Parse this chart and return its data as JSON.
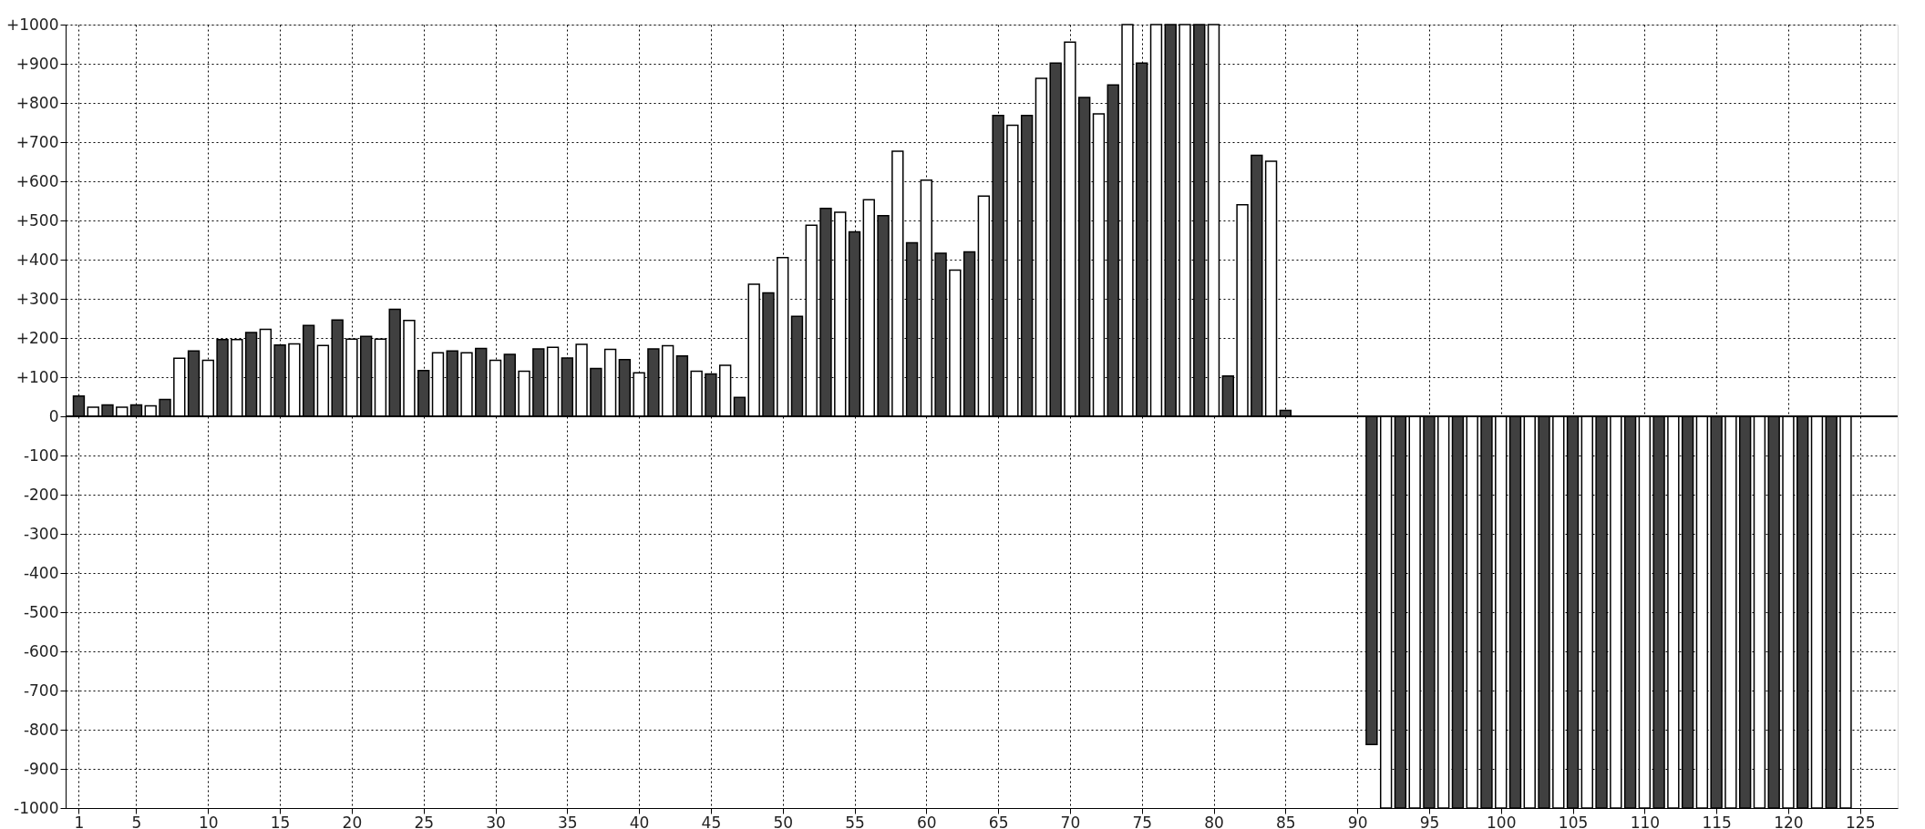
{
  "chart_data": {
    "type": "bar",
    "xlim": [
      0.4,
      127.3
    ],
    "xticks": [
      1,
      5,
      10,
      15,
      20,
      25,
      30,
      35,
      40,
      45,
      50,
      55,
      60,
      65,
      70,
      75,
      80,
      85,
      90,
      95,
      100,
      105,
      110,
      115,
      120,
      125
    ],
    "ylim": [
      -1000,
      1000
    ],
    "yticks": [
      {
        "value": -1000,
        "label": "-1000"
      },
      {
        "value": -900,
        "label": "-900"
      },
      {
        "value": -800,
        "label": "-800"
      },
      {
        "value": -700,
        "label": "-700"
      },
      {
        "value": -600,
        "label": "-600"
      },
      {
        "value": -500,
        "label": "-500"
      },
      {
        "value": -400,
        "label": "-400"
      },
      {
        "value": -300,
        "label": "-300"
      },
      {
        "value": -200,
        "label": "-200"
      },
      {
        "value": -100,
        "label": "-100"
      },
      0,
      {
        "value": 100,
        "label": "+100"
      },
      {
        "value": 200,
        "label": "+200"
      },
      {
        "value": 300,
        "label": "+300"
      },
      {
        "value": 400,
        "label": "+400"
      },
      {
        "value": 500,
        "label": "+500"
      },
      {
        "value": 600,
        "label": "+600"
      },
      {
        "value": 700,
        "label": "+700"
      },
      {
        "value": 800,
        "label": "+800"
      },
      {
        "value": 900,
        "label": "+900"
      },
      {
        "value": 1000,
        "label": "+1000"
      }
    ],
    "grid": true,
    "line_style": "dotted",
    "ref_lines": [
      {
        "axis": "y",
        "value": 0,
        "color": "#000000"
      }
    ],
    "series": [
      {
        "color": "#404040",
        "x": [
          1,
          3,
          5,
          7,
          9,
          11,
          13,
          15,
          17,
          19,
          21,
          23,
          25,
          27,
          29,
          31,
          33,
          35,
          37,
          39,
          41,
          43,
          45,
          47,
          49,
          51,
          53,
          55,
          57,
          59,
          61,
          63,
          65,
          67,
          69,
          71,
          73,
          75,
          77,
          79,
          81,
          83,
          85,
          91,
          93,
          95,
          97,
          99,
          101,
          103,
          105,
          107,
          109,
          111,
          113,
          115,
          117,
          119,
          121,
          123
        ],
        "values": [
          52,
          29,
          29,
          43,
          167,
          196,
          214,
          182,
          232,
          246,
          204,
          273,
          117,
          167,
          173,
          158,
          172,
          149,
          122,
          145,
          172,
          154,
          108,
          48,
          315,
          255,
          531,
          471,
          512,
          443,
          416,
          420,
          768,
          768,
          902,
          814,
          846,
          902,
          1000,
          1000,
          103,
          666,
          15,
          -838,
          -1000,
          -1000,
          -1000,
          -1000,
          -1000,
          -1000,
          -1000,
          -1000,
          -1000,
          -1000,
          -1000,
          -1000,
          -1000,
          -1000,
          -1000,
          -1000
        ]
      },
      {
        "color": "#ffffff",
        "x": [
          2,
          4,
          6,
          8,
          10,
          12,
          14,
          16,
          18,
          20,
          22,
          24,
          26,
          28,
          30,
          32,
          34,
          36,
          38,
          40,
          42,
          44,
          46,
          48,
          50,
          52,
          54,
          56,
          58,
          60,
          62,
          64,
          66,
          68,
          70,
          72,
          74,
          76,
          78,
          80,
          82,
          84,
          92,
          94,
          96,
          98,
          100,
          102,
          104,
          106,
          108,
          110,
          112,
          114,
          116,
          118,
          120,
          122,
          124
        ],
        "values": [
          23,
          23,
          27,
          148,
          143,
          196,
          222,
          185,
          181,
          197,
          197,
          245,
          162,
          162,
          143,
          115,
          176,
          184,
          171,
          111,
          180,
          115,
          130,
          337,
          405,
          488,
          521,
          553,
          677,
          603,
          373,
          562,
          743,
          863,
          955,
          772,
          1000,
          1000,
          1000,
          1000,
          540,
          651,
          -1000,
          -1000,
          -1000,
          -1000,
          -1000,
          -1000,
          -1000,
          -1000,
          -1000,
          -1000,
          -1000,
          -1000,
          -1000,
          -1000,
          -1000,
          -1000,
          -1000
        ]
      }
    ]
  }
}
